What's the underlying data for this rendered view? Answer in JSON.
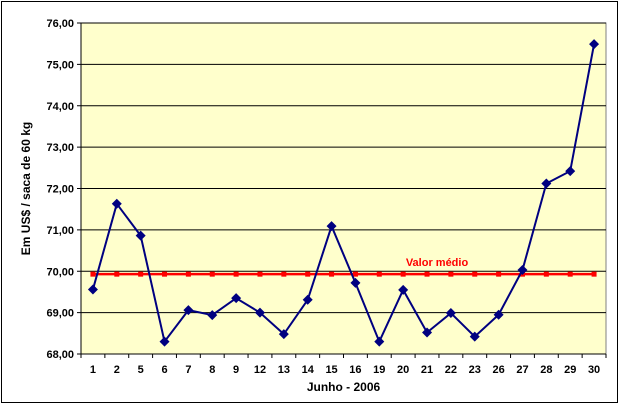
{
  "chart_data": {
    "type": "line",
    "title": "",
    "xlabel": "Junho - 2006",
    "ylabel": "Em US$ / saca de 60 kg",
    "categories": [
      "1",
      "2",
      "5",
      "6",
      "7",
      "8",
      "9",
      "12",
      "13",
      "14",
      "15",
      "16",
      "19",
      "20",
      "21",
      "22",
      "23",
      "26",
      "27",
      "28",
      "29",
      "30"
    ],
    "series": [
      {
        "name": "",
        "color": "#000080",
        "values": [
          69.56,
          71.63,
          70.86,
          68.3,
          69.06,
          68.94,
          69.35,
          69.0,
          68.48,
          69.31,
          71.09,
          69.72,
          68.3,
          69.55,
          68.52,
          68.99,
          68.42,
          68.95,
          70.03,
          72.12,
          72.42,
          75.49
        ]
      },
      {
        "name": "Valor médio",
        "color": "#ff0000",
        "values": [
          69.93,
          69.93,
          69.93,
          69.93,
          69.93,
          69.93,
          69.93,
          69.93,
          69.93,
          69.93,
          69.93,
          69.93,
          69.93,
          69.93,
          69.93,
          69.93,
          69.93,
          69.93,
          69.93,
          69.93,
          69.93,
          69.93
        ]
      }
    ],
    "annotation": "Valor médio",
    "yticks": [
      "68,00",
      "69,00",
      "70,00",
      "71,00",
      "72,00",
      "73,00",
      "74,00",
      "75,00",
      "76,00"
    ],
    "ylim": [
      68,
      76
    ],
    "grid": true,
    "plot_background": "#ffffcc",
    "annotation_color": "#ff0000"
  }
}
